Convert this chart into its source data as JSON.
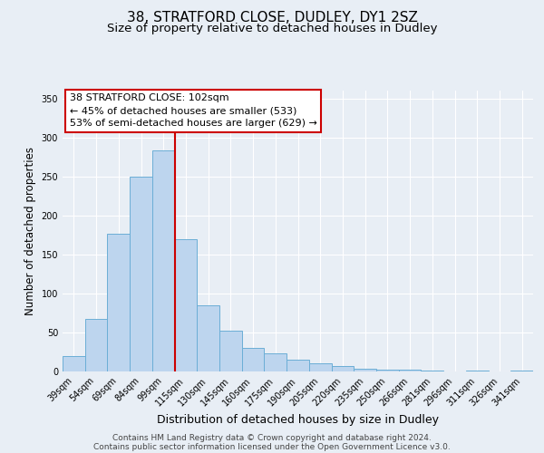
{
  "title1": "38, STRATFORD CLOSE, DUDLEY, DY1 2SZ",
  "title2": "Size of property relative to detached houses in Dudley",
  "xlabel": "Distribution of detached houses by size in Dudley",
  "ylabel": "Number of detached properties",
  "categories": [
    "39sqm",
    "54sqm",
    "69sqm",
    "84sqm",
    "99sqm",
    "115sqm",
    "130sqm",
    "145sqm",
    "160sqm",
    "175sqm",
    "190sqm",
    "205sqm",
    "220sqm",
    "235sqm",
    "250sqm",
    "266sqm",
    "281sqm",
    "296sqm",
    "311sqm",
    "326sqm",
    "341sqm"
  ],
  "values": [
    20,
    67,
    176,
    250,
    283,
    170,
    85,
    52,
    30,
    23,
    15,
    10,
    7,
    4,
    2,
    2,
    1,
    0,
    1,
    0,
    1
  ],
  "bar_color": "#bdd5ee",
  "bar_edge_color": "#6baed6",
  "vline_x_index": 4,
  "vline_color": "#cc0000",
  "annotation_title": "38 STRATFORD CLOSE: 102sqm",
  "annotation_line1": "← 45% of detached houses are smaller (533)",
  "annotation_line2": "53% of semi-detached houses are larger (629) →",
  "annotation_box_color": "#ffffff",
  "annotation_box_edge": "#cc0000",
  "ylim": [
    0,
    360
  ],
  "footer1": "Contains HM Land Registry data © Crown copyright and database right 2024.",
  "footer2": "Contains public sector information licensed under the Open Government Licence v3.0.",
  "bg_color": "#e8eef5",
  "plot_bg_color": "#e8eef5",
  "grid_color": "#ffffff",
  "title_fontsize": 11,
  "subtitle_fontsize": 9.5,
  "tick_fontsize": 7,
  "ylabel_fontsize": 8.5,
  "xlabel_fontsize": 9,
  "footer_fontsize": 6.5
}
